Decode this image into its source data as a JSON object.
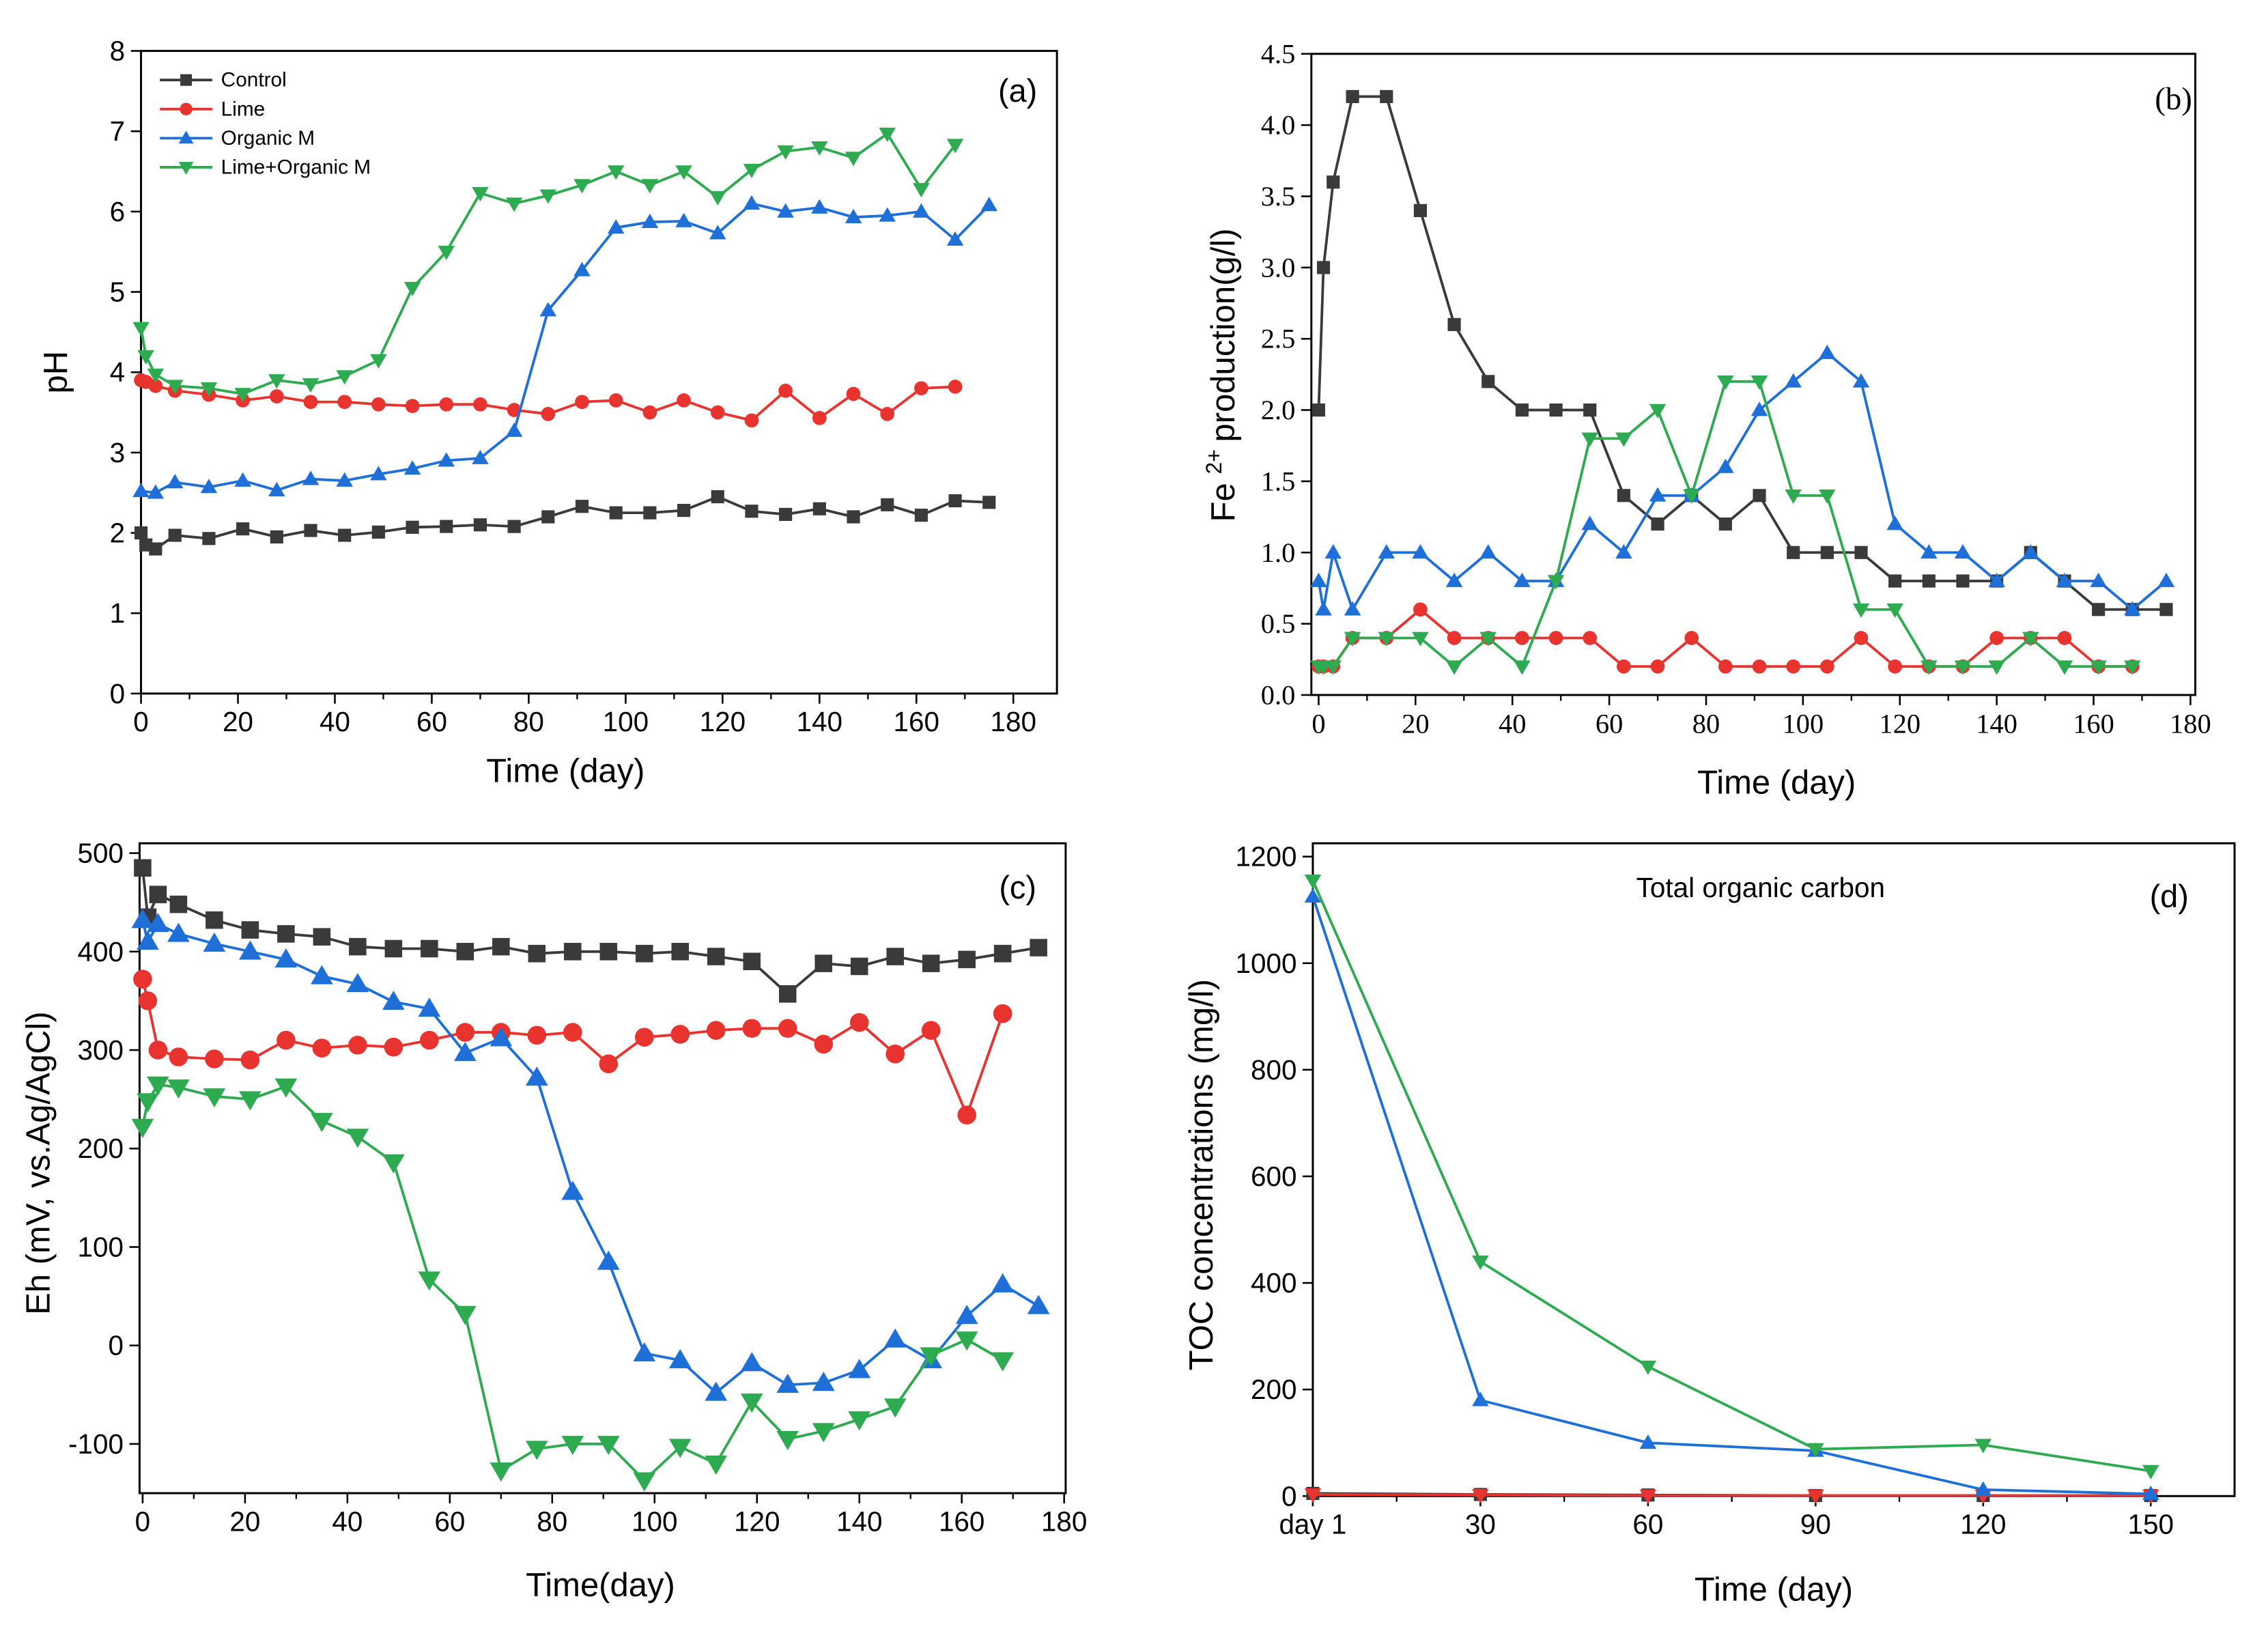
{
  "chart_data": [
    {
      "type": "line",
      "panel_label": "(a)",
      "xlabel": "Time (day)",
      "ylabel": "pH",
      "xlim": [
        0,
        189
      ],
      "ylim": [
        0,
        8
      ],
      "xticks": [
        "0",
        "20",
        "40",
        "60",
        "80",
        "100",
        "120",
        "140",
        "160",
        "180"
      ],
      "yticks": [
        "0",
        "1",
        "2",
        "3",
        "4",
        "5",
        "6",
        "7",
        "8"
      ],
      "grid": false,
      "legend_position": "top-left",
      "series": [
        {
          "name": "Control",
          "color": "#3a3a3a",
          "x": [
            0,
            1,
            3,
            7,
            14,
            21,
            28,
            35,
            42,
            49,
            56,
            63,
            70,
            77,
            84,
            91,
            98,
            105,
            112,
            119,
            126,
            133,
            140,
            147,
            154,
            161,
            168,
            175
          ],
          "y": [
            2.0,
            1.85,
            1.8,
            1.97,
            1.93,
            2.05,
            1.95,
            2.03,
            1.97,
            2.01,
            2.07,
            2.08,
            2.1,
            2.08,
            2.2,
            2.33,
            2.25,
            2.25,
            2.28,
            2.45,
            2.27,
            2.23,
            2.3,
            2.2,
            2.35,
            2.22,
            2.4,
            2.38
          ]
        },
        {
          "name": "Lime",
          "color": "#e8332f",
          "x": [
            0,
            1,
            3,
            7,
            14,
            21,
            28,
            35,
            42,
            49,
            56,
            63,
            70,
            77,
            84,
            91,
            98,
            105,
            112,
            119,
            126,
            133,
            140,
            147,
            154,
            161,
            168
          ],
          "y": [
            3.9,
            3.88,
            3.83,
            3.77,
            3.72,
            3.65,
            3.7,
            3.63,
            3.63,
            3.6,
            3.58,
            3.6,
            3.6,
            3.53,
            3.48,
            3.63,
            3.65,
            3.5,
            3.65,
            3.5,
            3.4,
            3.77,
            3.43,
            3.73,
            3.48,
            3.8,
            3.82
          ]
        },
        {
          "name": "Organic M",
          "color": "#1f6fd8",
          "x": [
            0,
            3,
            7,
            14,
            21,
            28,
            35,
            42,
            49,
            56,
            63,
            70,
            77,
            84,
            91,
            98,
            105,
            112,
            119,
            126,
            133,
            140,
            147,
            154,
            161,
            168,
            175
          ],
          "y": [
            2.52,
            2.5,
            2.63,
            2.57,
            2.65,
            2.53,
            2.67,
            2.65,
            2.73,
            2.8,
            2.9,
            2.93,
            3.27,
            4.77,
            5.27,
            5.8,
            5.87,
            5.88,
            5.73,
            6.1,
            6.0,
            6.05,
            5.93,
            5.95,
            6.0,
            5.65,
            6.08
          ]
        },
        {
          "name": "Lime+Organic M",
          "color": "#2eaa50",
          "x": [
            0,
            1,
            3,
            7,
            14,
            21,
            28,
            35,
            42,
            49,
            56,
            63,
            70,
            77,
            84,
            91,
            98,
            105,
            112,
            119,
            126,
            133,
            140,
            147,
            154,
            161,
            168
          ],
          "y": [
            4.55,
            4.2,
            3.97,
            3.83,
            3.8,
            3.73,
            3.9,
            3.85,
            3.95,
            4.15,
            5.05,
            5.5,
            6.23,
            6.1,
            6.2,
            6.33,
            6.5,
            6.33,
            6.5,
            6.18,
            6.52,
            6.75,
            6.8,
            6.67,
            6.97,
            6.28,
            6.83
          ]
        }
      ]
    },
    {
      "type": "line",
      "panel_label": "(b)",
      "xlabel": "Time (day)",
      "ylabel_base": "Fe",
      "ylabel_sup": "2+",
      "ylabel_tail": "production(g/l)",
      "xlim": [
        -1.5,
        181
      ],
      "ylim": [
        0,
        4.5
      ],
      "xticks": [
        "0",
        "20",
        "40",
        "60",
        "80",
        "100",
        "120",
        "140",
        "160",
        "180"
      ],
      "yticks": [
        "0.0",
        "0.5",
        "1.0",
        "1.5",
        "2.0",
        "2.5",
        "3.0",
        "3.5",
        "4.0",
        "4.5"
      ],
      "grid": false,
      "series": [
        {
          "color": "#3a3a3a",
          "x": [
            0,
            1,
            3,
            7,
            14,
            21,
            28,
            35,
            42,
            49,
            56,
            63,
            70,
            77,
            84,
            91,
            98,
            105,
            112,
            119,
            126,
            133,
            140,
            147,
            154,
            161,
            168,
            175
          ],
          "y": [
            2.0,
            3.0,
            3.6,
            4.2,
            4.2,
            3.4,
            2.6,
            2.2,
            2.0,
            2.0,
            2.0,
            1.4,
            1.2,
            1.4,
            1.2,
            1.4,
            1.0,
            1.0,
            1.0,
            0.8,
            0.8,
            0.8,
            0.8,
            1.0,
            0.8,
            0.6,
            0.6,
            0.6
          ]
        },
        {
          "color": "#e8332f",
          "x": [
            0,
            1,
            3,
            7,
            14,
            21,
            28,
            35,
            42,
            49,
            56,
            63,
            70,
            77,
            84,
            91,
            98,
            105,
            112,
            119,
            126,
            133,
            140,
            147,
            154,
            161,
            168
          ],
          "y": [
            0.2,
            0.2,
            0.2,
            0.4,
            0.4,
            0.6,
            0.4,
            0.4,
            0.4,
            0.4,
            0.4,
            0.2,
            0.2,
            0.4,
            0.2,
            0.2,
            0.2,
            0.2,
            0.4,
            0.2,
            0.2,
            0.2,
            0.4,
            0.4,
            0.4,
            0.2,
            0.2
          ]
        },
        {
          "color": "#1f6fd8",
          "x": [
            0,
            1,
            3,
            7,
            14,
            21,
            28,
            35,
            42,
            49,
            56,
            63,
            70,
            77,
            84,
            91,
            98,
            105,
            112,
            119,
            126,
            133,
            140,
            147,
            154,
            161,
            168,
            175
          ],
          "y": [
            0.8,
            0.6,
            1.0,
            0.6,
            1.0,
            1.0,
            0.8,
            1.0,
            0.8,
            0.8,
            1.2,
            1.0,
            1.4,
            1.4,
            1.6,
            2.0,
            2.2,
            2.4,
            2.2,
            1.2,
            1.0,
            1.0,
            0.8,
            1.0,
            0.8,
            0.8,
            0.6,
            0.8
          ]
        },
        {
          "color": "#2eaa50",
          "x": [
            0,
            1,
            3,
            7,
            14,
            21,
            28,
            35,
            42,
            49,
            56,
            63,
            70,
            77,
            84,
            91,
            98,
            105,
            112,
            119,
            126,
            133,
            140,
            147,
            154,
            161,
            168
          ],
          "y": [
            0.2,
            0.2,
            0.2,
            0.4,
            0.4,
            0.4,
            0.2,
            0.4,
            0.2,
            0.8,
            1.8,
            1.8,
            2.0,
            1.4,
            2.2,
            2.2,
            1.4,
            1.4,
            0.6,
            0.6,
            0.2,
            0.2,
            0.2,
            0.4,
            0.2,
            0.2,
            0.2
          ]
        }
      ]
    },
    {
      "type": "line",
      "panel_label": "(c)",
      "xlabel": "Time(day)",
      "ylabel": "Eh (mV, vs.Ag/AgCl)",
      "xlim": [
        -0.6,
        180.3
      ],
      "ylim": [
        -150,
        510
      ],
      "xticks": [
        "0",
        "20",
        "40",
        "60",
        "80",
        "100",
        "120",
        "140",
        "160",
        "180"
      ],
      "yticks": [
        "-100",
        "0",
        "100",
        "200",
        "300",
        "400",
        "500"
      ],
      "grid": false,
      "series": [
        {
          "color": "#3a3a3a",
          "x": [
            0,
            1,
            3,
            7,
            14,
            21,
            28,
            35,
            42,
            49,
            56,
            63,
            70,
            77,
            84,
            91,
            98,
            105,
            112,
            119,
            126,
            133,
            140,
            147,
            154,
            161,
            168,
            175
          ],
          "y": [
            485,
            435,
            458,
            448,
            432,
            422,
            418,
            415,
            405,
            403,
            403,
            400,
            405,
            398,
            400,
            400,
            398,
            400,
            395,
            390,
            357,
            388,
            385,
            395,
            388,
            392,
            398,
            404
          ]
        },
        {
          "color": "#e8332f",
          "x": [
            0,
            1,
            3,
            7,
            14,
            21,
            28,
            35,
            42,
            49,
            56,
            63,
            70,
            77,
            84,
            91,
            98,
            105,
            112,
            119,
            126,
            133,
            140,
            147,
            154,
            161,
            168
          ],
          "y": [
            372,
            350,
            300,
            293,
            291,
            290,
            310,
            302,
            305,
            303,
            310,
            318,
            318,
            315,
            318,
            286,
            313,
            316,
            320,
            322,
            322,
            306,
            328,
            296,
            320,
            234,
            337
          ]
        },
        {
          "color": "#1f6fd8",
          "x": [
            0,
            1,
            3,
            7,
            14,
            21,
            28,
            35,
            42,
            49,
            56,
            63,
            70,
            77,
            84,
            91,
            98,
            105,
            112,
            119,
            126,
            133,
            140,
            147,
            154,
            161,
            168,
            175
          ],
          "y": [
            432,
            410,
            428,
            418,
            408,
            400,
            392,
            375,
            367,
            349,
            342,
            297,
            312,
            272,
            156,
            85,
            -8,
            -15,
            -48,
            -18,
            -40,
            -38,
            -25,
            6,
            -15,
            30,
            62,
            40
          ]
        },
        {
          "color": "#2eaa50",
          "x": [
            0,
            1,
            3,
            7,
            14,
            21,
            28,
            35,
            42,
            49,
            56,
            63,
            70,
            77,
            84,
            91,
            98,
            105,
            112,
            119,
            126,
            133,
            140,
            147,
            154,
            161,
            168
          ],
          "y": [
            222,
            248,
            265,
            262,
            253,
            250,
            263,
            228,
            212,
            186,
            67,
            32,
            -127,
            -105,
            -100,
            -100,
            -137,
            -103,
            -120,
            -57,
            -95,
            -87,
            -75,
            -62,
            -10,
            6,
            -15
          ]
        }
      ]
    },
    {
      "type": "line",
      "panel_label": "(d)",
      "annotation": "Total organic carbon",
      "xlabel": "Time (day)",
      "ylabel": "TOC concentrations (mg/l)",
      "categories": [
        "day 1",
        "30",
        "60",
        "90",
        "120",
        "150"
      ],
      "ylim": [
        0,
        1225
      ],
      "yticks": [
        "0",
        "200",
        "400",
        "600",
        "800",
        "1000",
        "1200"
      ],
      "grid": false,
      "series": [
        {
          "color": "#3a3a3a",
          "values": [
            5,
            3,
            2,
            1,
            1,
            1
          ]
        },
        {
          "color": "#e8332f",
          "values": [
            3,
            2,
            1,
            1,
            1,
            1
          ]
        },
        {
          "color": "#1f6fd8",
          "values": [
            1125,
            180,
            100,
            85,
            12,
            4
          ]
        },
        {
          "color": "#2eaa50",
          "values": [
            1155,
            440,
            243,
            88,
            96,
            47
          ]
        }
      ]
    }
  ]
}
